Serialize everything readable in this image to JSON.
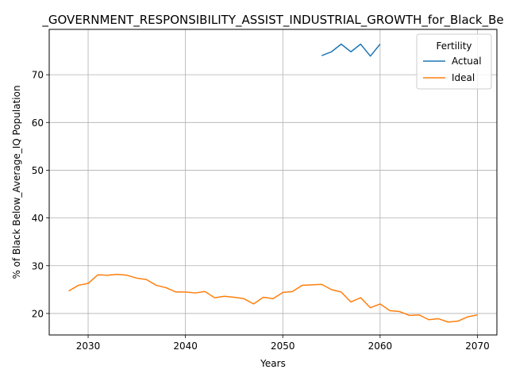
{
  "chart_data": {
    "type": "line",
    "title": "_GOVERNMENT_RESPONSIBILITY_ASSIST_INDUSTRIAL_GROWTH_for_Black_Be",
    "xlabel": "Years",
    "ylabel": "% of Black Below_Average_IQ Population",
    "xlim": [
      2026,
      2072
    ],
    "ylim": [
      15.5,
      79.5
    ],
    "xticks": [
      2030,
      2040,
      2050,
      2060,
      2070
    ],
    "yticks": [
      20,
      30,
      40,
      50,
      60,
      70
    ],
    "grid": true,
    "legend": {
      "title": "Fertility",
      "placement": "top-right"
    },
    "series": [
      {
        "name": "Actual",
        "color": "#1f77b4",
        "x": [
          2054,
          2055,
          2056,
          2057,
          2058,
          2059,
          2060
        ],
        "y": [
          74.0,
          74.8,
          76.4,
          74.8,
          76.4,
          73.9,
          76.4
        ]
      },
      {
        "name": "Ideal",
        "color": "#ff7f0e",
        "x": [
          2028,
          2029,
          2030,
          2031,
          2032,
          2033,
          2034,
          2035,
          2036,
          2037,
          2038,
          2039,
          2040,
          2041,
          2042,
          2043,
          2044,
          2045,
          2046,
          2047,
          2048,
          2049,
          2050,
          2051,
          2052,
          2053,
          2054,
          2055,
          2056,
          2057,
          2058,
          2059,
          2060,
          2061,
          2062,
          2063,
          2064,
          2065,
          2066,
          2067,
          2068,
          2069,
          2070
        ],
        "y": [
          24.7,
          25.9,
          26.3,
          28.1,
          28.0,
          28.2,
          28.0,
          27.4,
          27.1,
          25.9,
          25.4,
          24.5,
          24.5,
          24.3,
          24.6,
          23.3,
          23.6,
          23.4,
          23.1,
          22.0,
          23.4,
          23.1,
          24.4,
          24.6,
          25.9,
          26.0,
          26.1,
          25.0,
          24.5,
          22.4,
          23.3,
          21.2,
          22.0,
          20.6,
          20.4,
          19.6,
          19.7,
          18.7,
          18.9,
          18.2,
          18.4,
          19.3,
          19.7
        ]
      }
    ]
  }
}
